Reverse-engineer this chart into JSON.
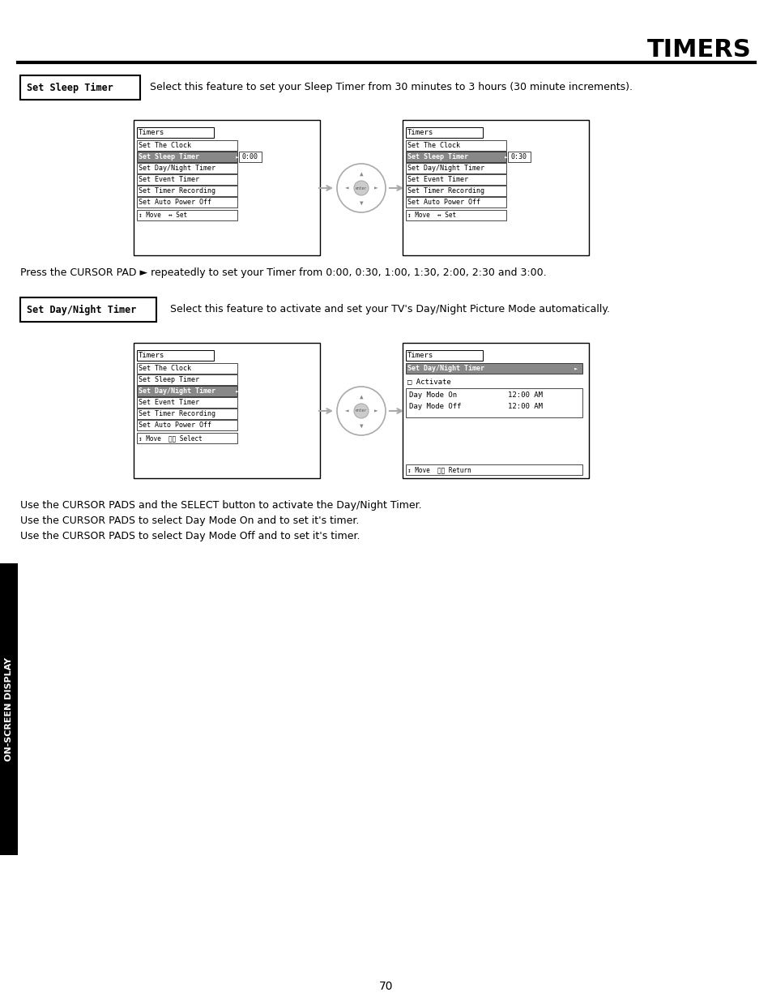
{
  "title": "TIMERS",
  "section1_label": "Set Sleep Timer",
  "section1_desc": "Select this feature to set your Sleep Timer from 30 minutes to 3 hours (30 minute increments).",
  "section1_note": "Press the CURSOR PAD ► repeatedly to set your Timer from 0:00, 0:30, 1:00, 1:30, 2:00, 2:30 and 3:00.",
  "section2_label": "Set Day/Night Timer",
  "section2_desc": "Select this feature to activate and set your TV's Day/Night Picture Mode automatically.",
  "section2_notes": [
    "Use the CURSOR PADS and the SELECT button to activate the Day/Night Timer.",
    "Use the CURSOR PADS to select Day Mode On and to set it's timer.",
    "Use the CURSOR PADS to select Day Mode Off and to set it's timer."
  ],
  "menu_items": [
    "Set The Clock",
    "Set Sleep Timer",
    "Set Day/Night Timer",
    "Set Event Timer",
    "Set Timer Recording",
    "Set Auto Power Off"
  ],
  "footer_text": "70",
  "sidebar_text": "ON-SCREEN DISPLAY",
  "bg_color": "#ffffff",
  "highlight_color": "#888888"
}
